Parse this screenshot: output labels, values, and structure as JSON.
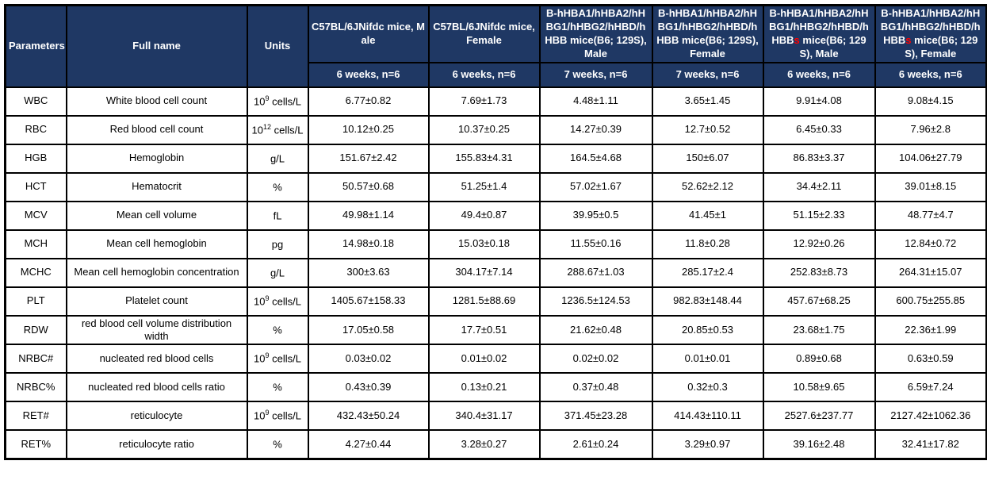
{
  "table": {
    "colors": {
      "header_bg": "#1F3864",
      "header_text": "#FFFFFF",
      "highlight_red": "#FF0000",
      "border": "#000000"
    },
    "columns": {
      "parameters": "Parameters",
      "full_name": "Full name",
      "units": "Units"
    },
    "groups": [
      {
        "pre": "C57BL/6JNifdc mice, Male",
        "red": "",
        "post": "",
        "sub": "6 weeks, n=6"
      },
      {
        "pre": "C57BL/6JNifdc mice, Female",
        "red": "",
        "post": "",
        "sub": "6 weeks, n=6"
      },
      {
        "pre": "B-hHBA1/hHBA2/hHBG1/hHBG2/hHBD/hHBB",
        "red": "",
        "post": " mice(B6; 129S), Male",
        "sub": "7 weeks, n=6"
      },
      {
        "pre": "B-hHBA1/hHBA2/hHBG1/hHBG2/hHBD/hHBB",
        "red": "",
        "post": " mice(B6; 129S), Female",
        "sub": "7 weeks, n=6"
      },
      {
        "pre": "B-hHBA1/hHBA2/hHBG1/hHBG2/hHBD/hHBB",
        "red": "s",
        "post": " mice(B6; 129S), Male",
        "sub": "6 weeks, n=6"
      },
      {
        "pre": "B-hHBA1/hHBA2/hHBG1/hHBG2/hHBD/hHBB",
        "red": "s",
        "post": " mice(B6; 129S), Female",
        "sub": "6 weeks, n=6"
      }
    ],
    "rows": [
      {
        "param": "WBC",
        "full_name": "White blood cell count",
        "unit": {
          "pre": "10",
          "sup": "9",
          "post": " cells/L"
        },
        "values": [
          "6.77±0.82",
          "7.69±1.73",
          "4.48±1.11",
          "3.65±1.45",
          "9.91±4.08",
          "9.08±4.15"
        ]
      },
      {
        "param": "RBC",
        "full_name": "Red blood cell count",
        "unit": {
          "pre": "10",
          "sup": "12",
          "post": " cells/L"
        },
        "values": [
          "10.12±0.25",
          "10.37±0.25",
          "14.27±0.39",
          "12.7±0.52",
          "6.45±0.33",
          "7.96±2.8"
        ]
      },
      {
        "param": "HGB",
        "full_name": "Hemoglobin",
        "unit": {
          "pre": "g/L",
          "sup": "",
          "post": ""
        },
        "values": [
          "151.67±2.42",
          "155.83±4.31",
          "164.5±4.68",
          "150±6.07",
          "86.83±3.37",
          "104.06±27.79"
        ]
      },
      {
        "param": "HCT",
        "full_name": "Hematocrit",
        "unit": {
          "pre": "%",
          "sup": "",
          "post": ""
        },
        "values": [
          "50.57±0.68",
          "51.25±1.4",
          "57.02±1.67",
          "52.62±2.12",
          "34.4±2.11",
          "39.01±8.15"
        ]
      },
      {
        "param": "MCV",
        "full_name": "Mean cell volume",
        "unit": {
          "pre": "fL",
          "sup": "",
          "post": ""
        },
        "values": [
          "49.98±1.14",
          "49.4±0.87",
          "39.95±0.5",
          "41.45±1",
          "51.15±2.33",
          "48.77±4.7"
        ]
      },
      {
        "param": "MCH",
        "full_name": "Mean cell hemoglobin",
        "unit": {
          "pre": "pg",
          "sup": "",
          "post": ""
        },
        "values": [
          "14.98±0.18",
          "15.03±0.18",
          "11.55±0.16",
          "11.8±0.28",
          "12.92±0.26",
          "12.84±0.72"
        ]
      },
      {
        "param": "MCHC",
        "full_name": "Mean cell hemoglobin concentration",
        "unit": {
          "pre": "g/L",
          "sup": "",
          "post": ""
        },
        "values": [
          "300±3.63",
          "304.17±7.14",
          "288.67±1.03",
          "285.17±2.4",
          "252.83±8.73",
          "264.31±15.07"
        ]
      },
      {
        "param": "PLT",
        "full_name": "Platelet count",
        "unit": {
          "pre": "10",
          "sup": "9",
          "post": " cells/L"
        },
        "values": [
          "1405.67±158.33",
          "1281.5±88.69",
          "1236.5±124.53",
          "982.83±148.44",
          "457.67±68.25",
          "600.75±255.85"
        ]
      },
      {
        "param": "RDW",
        "full_name": "red blood cell volume distribution width",
        "unit": {
          "pre": "%",
          "sup": "",
          "post": ""
        },
        "values": [
          "17.05±0.58",
          "17.7±0.51",
          "21.62±0.48",
          "20.85±0.53",
          "23.68±1.75",
          "22.36±1.99"
        ]
      },
      {
        "param": "NRBC#",
        "full_name": "nucleated red blood cells",
        "unit": {
          "pre": "10",
          "sup": "9",
          "post": " cells/L"
        },
        "values": [
          "0.03±0.02",
          "0.01±0.02",
          "0.02±0.02",
          "0.01±0.01",
          "0.89±0.68",
          "0.63±0.59"
        ]
      },
      {
        "param": "NRBC%",
        "full_name": "nucleated red blood cells ratio",
        "unit": {
          "pre": "%",
          "sup": "",
          "post": ""
        },
        "values": [
          "0.43±0.39",
          "0.13±0.21",
          "0.37±0.48",
          "0.32±0.3",
          "10.58±9.65",
          "6.59±7.24"
        ]
      },
      {
        "param": "RET#",
        "full_name": "reticulocyte",
        "unit": {
          "pre": "10",
          "sup": "9",
          "post": " cells/L"
        },
        "values": [
          "432.43±50.24",
          "340.4±31.17",
          "371.45±23.28",
          "414.43±110.11",
          "2527.6±237.77",
          "2127.42±1062.36"
        ]
      },
      {
        "param": "RET%",
        "full_name": "reticulocyte ratio",
        "unit": {
          "pre": "%",
          "sup": "",
          "post": ""
        },
        "values": [
          "4.27±0.44",
          "3.28±0.27",
          "2.61±0.24",
          "3.29±0.97",
          "39.16±2.48",
          "32.41±17.82"
        ]
      }
    ]
  }
}
